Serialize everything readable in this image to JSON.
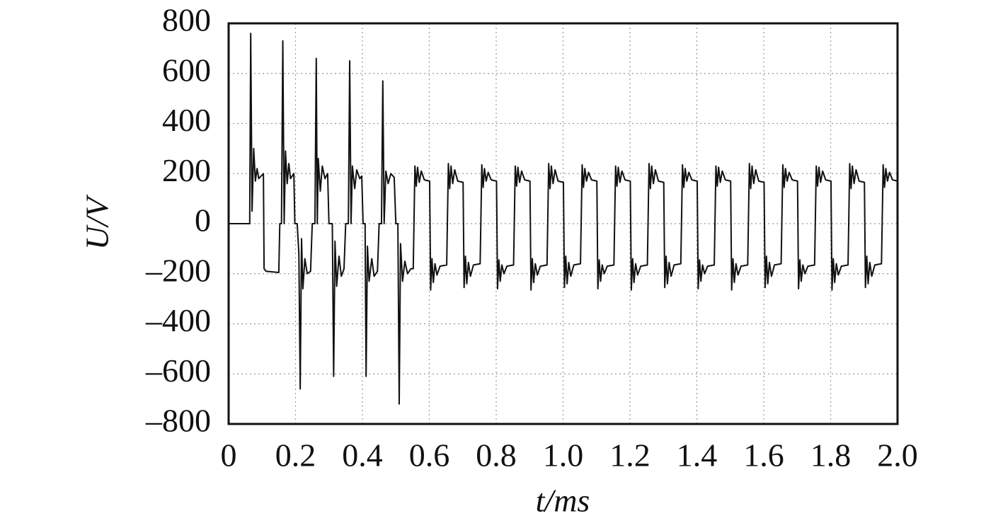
{
  "chart_data": {
    "type": "line",
    "xlabel": "t/ms",
    "ylabel": "U/V",
    "color": "#111111",
    "grid": true,
    "xlim": [
      0,
      2
    ],
    "ylim": [
      -800,
      800
    ],
    "xticks": [
      0,
      0.2,
      0.4,
      0.6,
      0.8,
      {
        "value": 1,
        "label": "1.0"
      },
      1.2,
      1.4,
      1.6,
      1.8,
      {
        "value": 2,
        "label": "2.0"
      }
    ],
    "yticks": [
      {
        "value": -800,
        "label": "–800"
      },
      {
        "value": -600,
        "label": "–600"
      },
      {
        "value": -400,
        "label": "–400"
      },
      {
        "value": -200,
        "label": "–200"
      },
      0,
      200,
      400,
      600,
      800
    ],
    "x": [
      0,
      0.063,
      0.066,
      0.07,
      0.075,
      0.08,
      0.085,
      0.09,
      0.104,
      0.106,
      0.112,
      0.15,
      0.153,
      0.158,
      0.162,
      0.166,
      0.17,
      0.175,
      0.18,
      0.185,
      0.195,
      0.198,
      0.205,
      0.21,
      0.214,
      0.218,
      0.222,
      0.228,
      0.235,
      0.245,
      0.25,
      0.258,
      0.262,
      0.265,
      0.268,
      0.274,
      0.28,
      0.288,
      0.296,
      0.3,
      0.31,
      0.314,
      0.318,
      0.323,
      0.33,
      0.337,
      0.345,
      0.35,
      0.358,
      0.362,
      0.366,
      0.37,
      0.377,
      0.383,
      0.392,
      0.398,
      0.402,
      0.408,
      0.411,
      0.415,
      0.42,
      0.428,
      0.435,
      0.445,
      0.45,
      0.457,
      0.461,
      0.465,
      0.47,
      0.477,
      0.485,
      0.495,
      0.5,
      0.506,
      0.51,
      0.514,
      0.52,
      0.527,
      0.535,
      0.545,
      0.552,
      0.557,
      0.561,
      0.565,
      0.57,
      0.576,
      0.585,
      0.601,
      0.604,
      0.608,
      0.612,
      0.617,
      0.623,
      0.632,
      0.652,
      0.657,
      0.661,
      0.665,
      0.67,
      0.676,
      0.685,
      0.701,
      0.704,
      0.708,
      0.712,
      0.717,
      0.723,
      0.732,
      0.752,
      0.757,
      0.761,
      0.765,
      0.77,
      0.776,
      0.785,
      0.801,
      0.804,
      0.808,
      0.812,
      0.817,
      0.823,
      0.832,
      0.852,
      0.857,
      0.861,
      0.865,
      0.87,
      0.876,
      0.885,
      0.901,
      0.904,
      0.908,
      0.912,
      0.917,
      0.923,
      0.932,
      0.952,
      0.957,
      0.961,
      0.965,
      0.97,
      0.976,
      0.985,
      1.001,
      1.004,
      1.008,
      1.012,
      1.017,
      1.023,
      1.032,
      1.052,
      1.057,
      1.061,
      1.065,
      1.07,
      1.076,
      1.085,
      1.101,
      1.104,
      1.108,
      1.112,
      1.117,
      1.123,
      1.132,
      1.152,
      1.157,
      1.161,
      1.165,
      1.17,
      1.176,
      1.185,
      1.201,
      1.204,
      1.208,
      1.212,
      1.217,
      1.223,
      1.232,
      1.252,
      1.257,
      1.261,
      1.265,
      1.27,
      1.276,
      1.285,
      1.301,
      1.304,
      1.308,
      1.312,
      1.317,
      1.323,
      1.332,
      1.352,
      1.357,
      1.361,
      1.365,
      1.37,
      1.376,
      1.385,
      1.401,
      1.404,
      1.408,
      1.412,
      1.417,
      1.423,
      1.432,
      1.452,
      1.457,
      1.461,
      1.465,
      1.47,
      1.476,
      1.485,
      1.501,
      1.504,
      1.508,
      1.512,
      1.517,
      1.523,
      1.532,
      1.552,
      1.557,
      1.561,
      1.565,
      1.57,
      1.576,
      1.585,
      1.601,
      1.604,
      1.608,
      1.612,
      1.617,
      1.623,
      1.632,
      1.652,
      1.657,
      1.661,
      1.665,
      1.67,
      1.676,
      1.685,
      1.701,
      1.704,
      1.708,
      1.712,
      1.717,
      1.723,
      1.732,
      1.752,
      1.757,
      1.761,
      1.765,
      1.77,
      1.776,
      1.785,
      1.801,
      1.804,
      1.808,
      1.812,
      1.817,
      1.823,
      1.832,
      1.852,
      1.857,
      1.861,
      1.865,
      1.87,
      1.876,
      1.885,
      1.901,
      1.904,
      1.908,
      1.912,
      1.917,
      1.923,
      1.932,
      1.952,
      1.957,
      1.961,
      1.965,
      1.97,
      1.976,
      1.985,
      2.0
    ],
    "values": [
      0,
      0,
      760,
      50,
      300,
      170,
      220,
      180,
      200,
      -180,
      -190,
      -195,
      0,
      0,
      730,
      0,
      290,
      160,
      240,
      180,
      200,
      0,
      0,
      -120,
      -660,
      -60,
      -260,
      -140,
      -200,
      -190,
      0,
      0,
      660,
      0,
      260,
      130,
      230,
      180,
      200,
      0,
      0,
      -610,
      -70,
      -250,
      -130,
      -210,
      -180,
      0,
      0,
      650,
      0,
      230,
      140,
      215,
      180,
      190,
      0,
      0,
      -610,
      -90,
      -230,
      -140,
      -210,
      -190,
      0,
      0,
      570,
      0,
      210,
      160,
      200,
      185,
      0,
      0,
      -720,
      -80,
      -230,
      -150,
      -200,
      -180,
      -180,
      230,
      150,
      225,
      165,
      210,
      175,
      170,
      -265,
      -140,
      -235,
      -160,
      -205,
      -170,
      -165,
      240,
      140,
      230,
      160,
      215,
      170,
      165,
      -255,
      -130,
      -240,
      -155,
      -210,
      -165,
      -160,
      235,
      145,
      220,
      170,
      205,
      175,
      170,
      -260,
      -145,
      -230,
      -165,
      -200,
      -170,
      -165,
      230,
      150,
      225,
      165,
      210,
      175,
      170,
      -265,
      -140,
      -235,
      -160,
      -205,
      -170,
      -165,
      240,
      140,
      230,
      160,
      215,
      170,
      165,
      -255,
      -130,
      -240,
      -155,
      -210,
      -165,
      -160,
      235,
      145,
      220,
      170,
      205,
      175,
      170,
      -260,
      -145,
      -230,
      -165,
      -200,
      -170,
      -165,
      230,
      150,
      225,
      165,
      210,
      175,
      170,
      -265,
      -140,
      -235,
      -160,
      -205,
      -170,
      -165,
      240,
      140,
      230,
      160,
      215,
      170,
      165,
      -255,
      -130,
      -240,
      -155,
      -210,
      -165,
      -160,
      235,
      145,
      220,
      170,
      205,
      175,
      170,
      -260,
      -145,
      -230,
      -165,
      -200,
      -170,
      -165,
      230,
      150,
      225,
      165,
      210,
      175,
      170,
      -265,
      -140,
      -235,
      -160,
      -205,
      -170,
      -165,
      240,
      140,
      230,
      160,
      215,
      170,
      165,
      -255,
      -130,
      -240,
      -155,
      -210,
      -165,
      -160,
      235,
      145,
      220,
      170,
      205,
      175,
      170,
      -260,
      -145,
      -230,
      -165,
      -200,
      -170,
      -165,
      230,
      150,
      225,
      165,
      210,
      175,
      170,
      -265,
      -140,
      -235,
      -160,
      -205,
      -170,
      -165,
      240,
      140,
      230,
      160,
      215,
      170,
      165,
      -255,
      -130,
      -240,
      -155,
      -210,
      -165,
      -160,
      235,
      145,
      220,
      170,
      205,
      175,
      170
    ]
  }
}
